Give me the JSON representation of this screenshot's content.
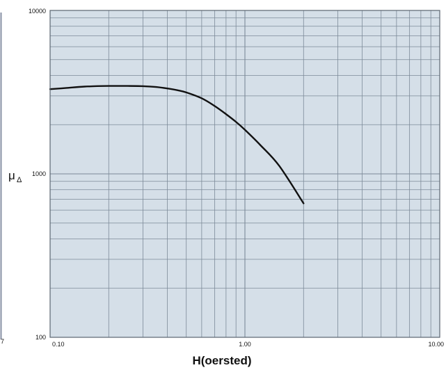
{
  "chart_data": {
    "type": "line",
    "title": "",
    "xlabel": "H(oersted)",
    "ylabel": "μ",
    "ylabel_subscript": "Δ",
    "x_scale": "log",
    "y_scale": "log",
    "xlim": [
      0.1,
      10
    ],
    "ylim": [
      100,
      10000
    ],
    "x_tick_labels": [
      "0.10",
      "1.00",
      "10.00"
    ],
    "x_tick_values": [
      0.1,
      1,
      10
    ],
    "y_tick_labels": [
      "100",
      "1000",
      "10000"
    ],
    "y_tick_values": [
      100,
      1000,
      10000
    ],
    "grid": true,
    "colors": {
      "plot_background": "#d5dfe8",
      "grid": "#7c8a98",
      "curve": "#111111",
      "frame": "#5a6570"
    },
    "series": [
      {
        "x": [
          0.1,
          0.12,
          0.15,
          0.2,
          0.25,
          0.3,
          0.35,
          0.4,
          0.45,
          0.5,
          0.6,
          0.7,
          0.8,
          0.9,
          1.0,
          1.2,
          1.5,
          2.0
        ],
        "y": [
          3300,
          3350,
          3420,
          3450,
          3450,
          3440,
          3400,
          3330,
          3250,
          3150,
          2900,
          2600,
          2320,
          2080,
          1860,
          1500,
          1120,
          660
        ]
      }
    ]
  },
  "edge_fragment": "7"
}
